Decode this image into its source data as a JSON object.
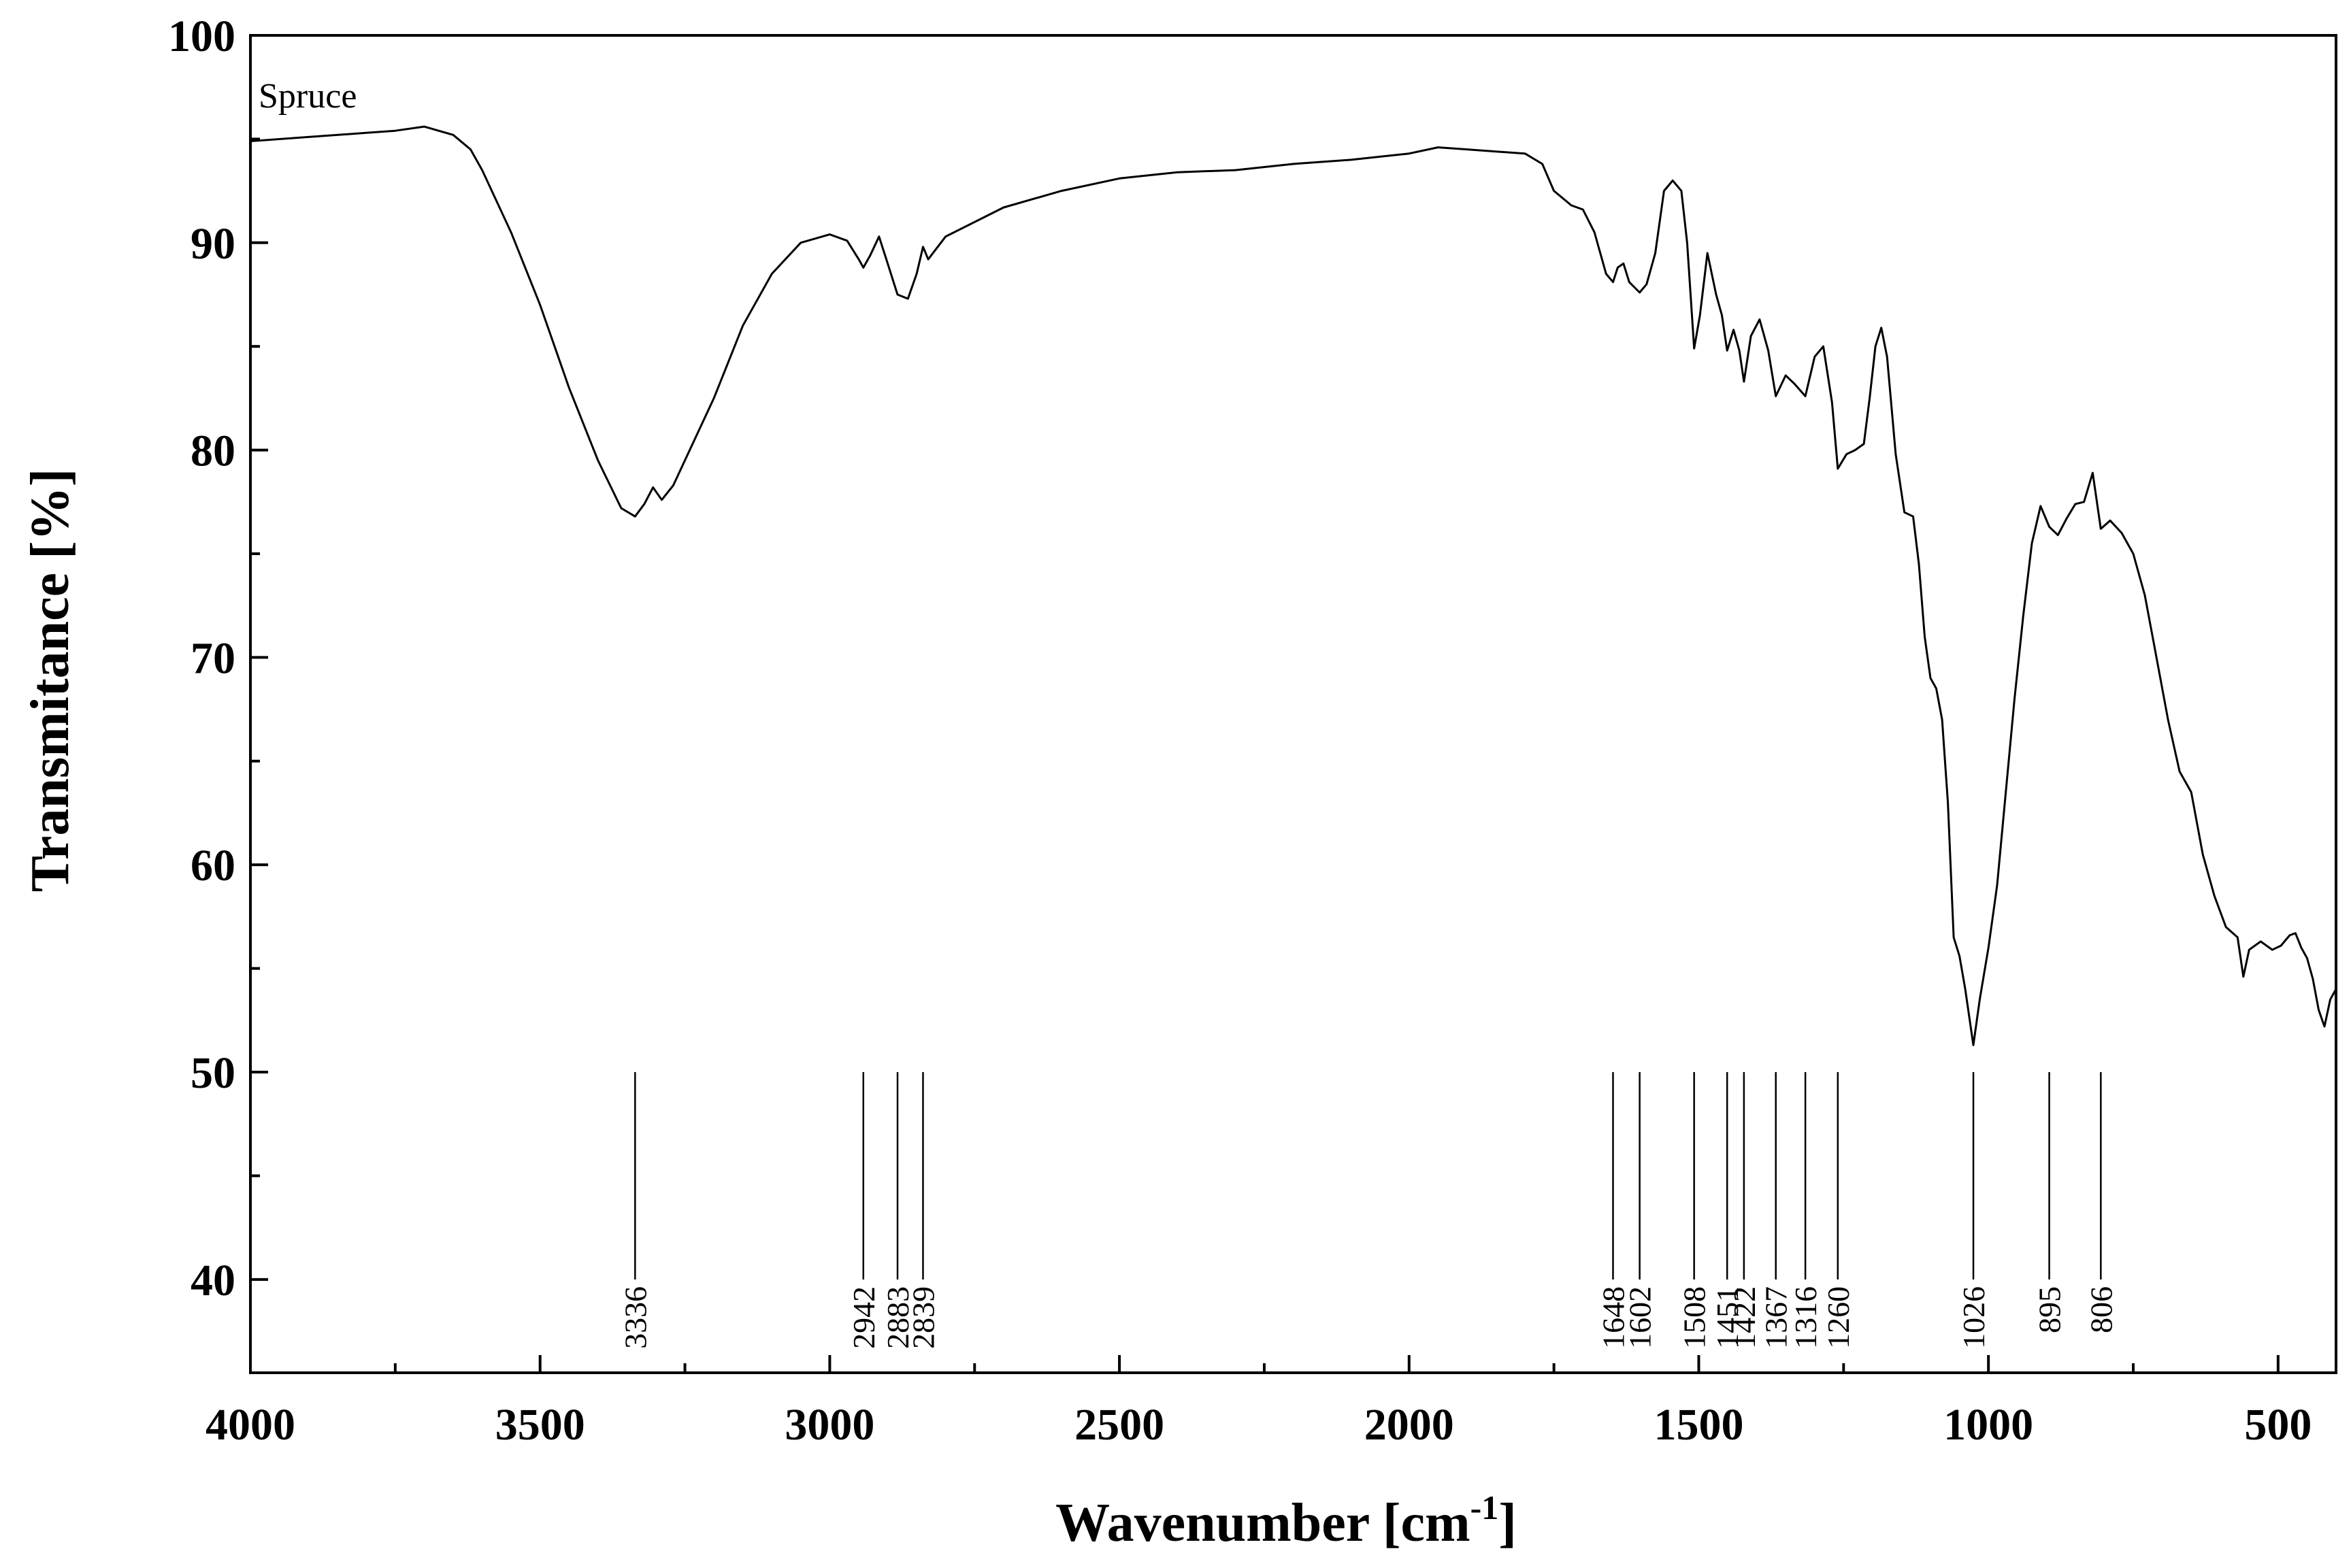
{
  "chart_data": {
    "type": "line",
    "title": "",
    "xlabel": "Wavenumber [cm",
    "xlabel_sup": "-1",
    "xlabel_close": "]",
    "ylabel": "Transmitance [%]",
    "xlim": [
      4000,
      400
    ],
    "ylim": [
      35.5,
      100
    ],
    "x_ticks": [
      4000,
      3500,
      3000,
      2500,
      2000,
      1500,
      1000,
      500
    ],
    "x_tick_labels": [
      "4000",
      "3500",
      "3000",
      "2500",
      "2000",
      "1500",
      "1000",
      "500"
    ],
    "y_ticks": [
      40,
      50,
      60,
      70,
      80,
      90,
      100
    ],
    "y_tick_labels": [
      "40",
      "50",
      "60",
      "70",
      "80",
      "90",
      "100"
    ],
    "x_minor_step": 250,
    "y_minor_step": 5,
    "grid": false,
    "legend": "none",
    "series": [
      {
        "name": "Spruce",
        "x": [
          4000,
          3900,
          3800,
          3750,
          3700,
          3650,
          3620,
          3600,
          3550,
          3500,
          3450,
          3400,
          3360,
          3336,
          3320,
          3305,
          3290,
          3270,
          3250,
          3200,
          3150,
          3100,
          3050,
          3000,
          2970,
          2950,
          2942,
          2930,
          2915,
          2900,
          2883,
          2865,
          2850,
          2839,
          2830,
          2800,
          2700,
          2600,
          2500,
          2400,
          2300,
          2200,
          2100,
          2000,
          1950,
          1900,
          1850,
          1800,
          1770,
          1750,
          1720,
          1700,
          1680,
          1660,
          1648,
          1640,
          1630,
          1620,
          1602,
          1590,
          1575,
          1560,
          1545,
          1530,
          1520,
          1508,
          1498,
          1485,
          1470,
          1460,
          1451,
          1440,
          1430,
          1422,
          1410,
          1395,
          1380,
          1367,
          1350,
          1335,
          1316,
          1300,
          1285,
          1270,
          1260,
          1245,
          1230,
          1215,
          1205,
          1195,
          1185,
          1175,
          1160,
          1145,
          1130,
          1120,
          1110,
          1100,
          1090,
          1080,
          1070,
          1060,
          1050,
          1040,
          1026,
          1015,
          1000,
          985,
          970,
          955,
          940,
          925,
          910,
          895,
          880,
          865,
          850,
          835,
          820,
          806,
          790,
          770,
          750,
          730,
          710,
          690,
          670,
          650,
          630,
          610,
          590,
          570,
          560,
          550,
          530,
          510,
          495,
          480,
          470,
          460,
          450,
          440,
          430,
          420,
          410,
          400
        ],
        "y": [
          94.9,
          95.1,
          95.3,
          95.4,
          95.6,
          95.2,
          94.5,
          93.5,
          90.5,
          87,
          83,
          79.5,
          77.2,
          76.8,
          77.4,
          78.2,
          77.6,
          78.3,
          79.5,
          82.5,
          86,
          88.5,
          90,
          90.4,
          90.1,
          89.2,
          88.8,
          89.4,
          90.3,
          89,
          87.5,
          87.3,
          88.5,
          89.8,
          89.2,
          90.3,
          91.7,
          92.5,
          93.1,
          93.4,
          93.5,
          93.8,
          94,
          94.3,
          94.6,
          94.5,
          94.4,
          94.3,
          93.8,
          92.5,
          91.8,
          91.6,
          90.5,
          88.5,
          88.1,
          88.8,
          89,
          88.1,
          87.6,
          88,
          89.5,
          92.5,
          93,
          92.5,
          90,
          84.9,
          86.5,
          89.5,
          87.5,
          86.5,
          84.8,
          85.8,
          84.8,
          83.3,
          85.5,
          86.3,
          84.8,
          82.6,
          83.6,
          83.2,
          82.6,
          84.5,
          85,
          82.3,
          79.1,
          79.8,
          80,
          80.3,
          82.5,
          85,
          85.9,
          84.5,
          79.8,
          77,
          76.8,
          74.5,
          71,
          69,
          68.5,
          67,
          63,
          56.5,
          55.6,
          54,
          51.3,
          53.5,
          56,
          59,
          63.5,
          68,
          72,
          75.5,
          77.3,
          76.3,
          75.9,
          76.7,
          77.4,
          77.5,
          78.9,
          76.2,
          76.6,
          76,
          75,
          73,
          70,
          67,
          64.5,
          63.5,
          60.5,
          58.5,
          57,
          56.5,
          54.6,
          55.9,
          56.3,
          55.9,
          56.1,
          56.6,
          56.7,
          56,
          55.5,
          54.5,
          53,
          52.2,
          53.5,
          54
        ]
      }
    ],
    "peak_markers": [
      3336,
      2942,
      2883,
      2839,
      1648,
      1602,
      1508,
      1451,
      1422,
      1367,
      1316,
      1260,
      1026,
      895,
      806
    ],
    "peak_labels": [
      "3336",
      "2942",
      "2883",
      "2839",
      "1648",
      "1602",
      "1508",
      "1451",
      "1422",
      "1367",
      "1316",
      "1260",
      "1026",
      "895",
      "806"
    ],
    "peak_marker_range": [
      40,
      50
    ]
  }
}
